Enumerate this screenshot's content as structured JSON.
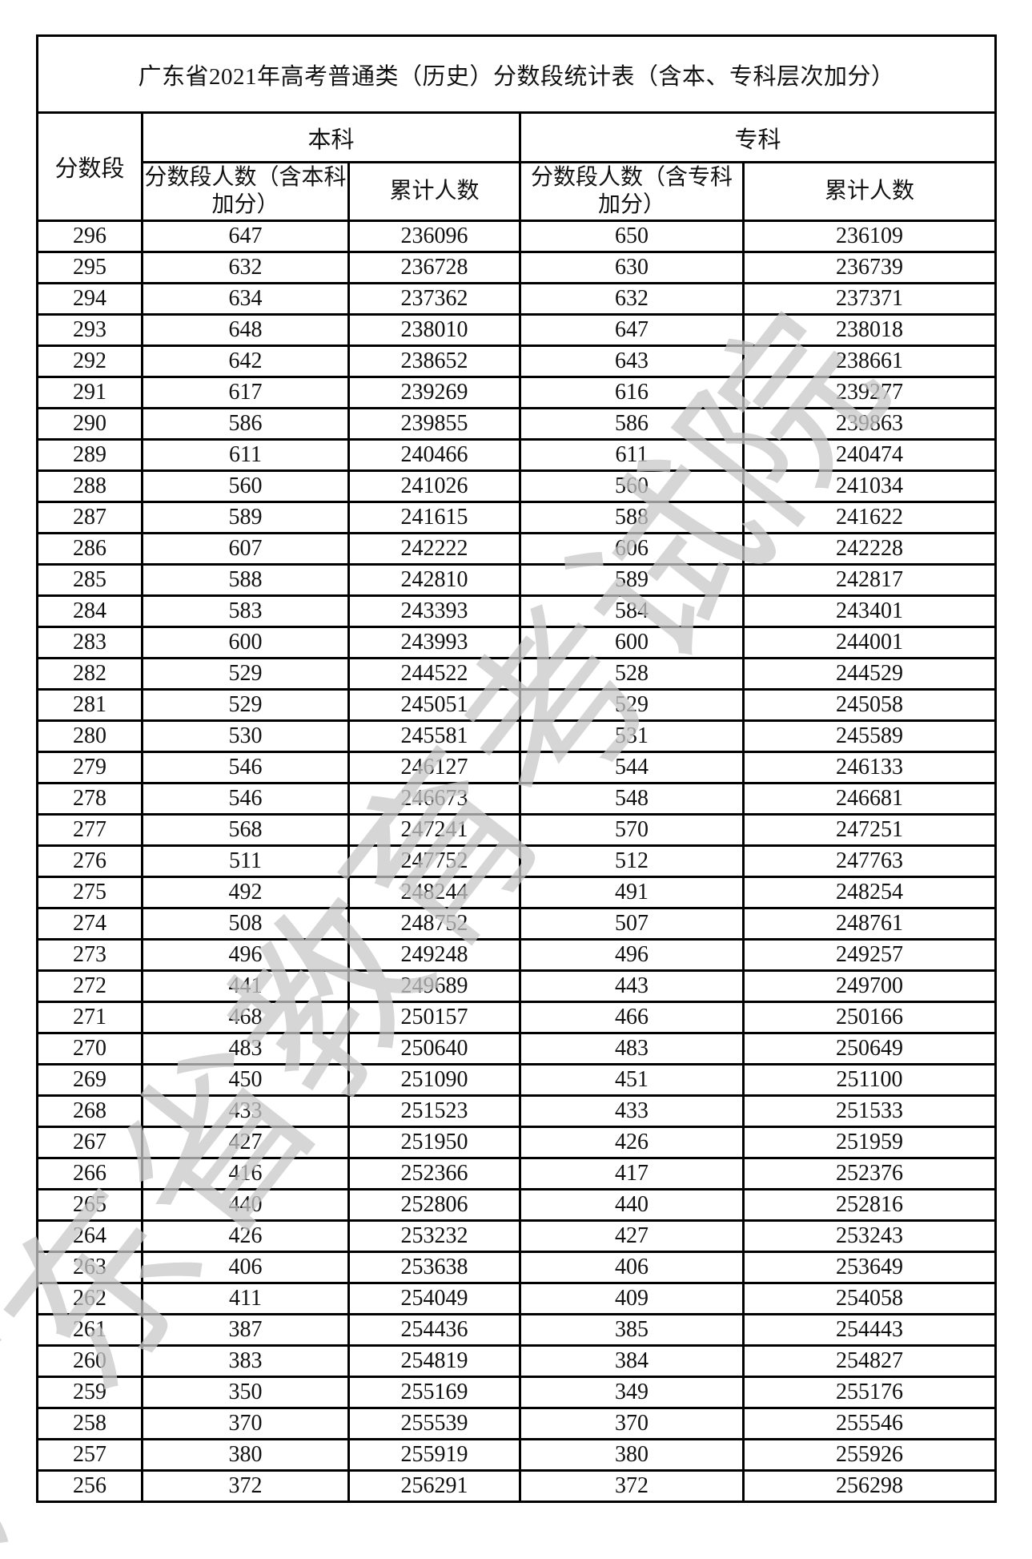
{
  "title": "广东省2021年高考普通类（历史）分数段统计表（含本、专科层次加分）",
  "headers": {
    "score_band": "分数段",
    "benke": "本科",
    "zhuanke": "专科",
    "benke_count": "分数段人数（含本科加分）",
    "benke_cumulative": "累计人数",
    "zhuanke_count": "分数段人数（含专科加分）",
    "zhuanke_cumulative": "累计人数"
  },
  "watermark": "广东省教育考试院",
  "rows": [
    [
      "296",
      "647",
      "236096",
      "650",
      "236109"
    ],
    [
      "295",
      "632",
      "236728",
      "630",
      "236739"
    ],
    [
      "294",
      "634",
      "237362",
      "632",
      "237371"
    ],
    [
      "293",
      "648",
      "238010",
      "647",
      "238018"
    ],
    [
      "292",
      "642",
      "238652",
      "643",
      "238661"
    ],
    [
      "291",
      "617",
      "239269",
      "616",
      "239277"
    ],
    [
      "290",
      "586",
      "239855",
      "586",
      "239863"
    ],
    [
      "289",
      "611",
      "240466",
      "611",
      "240474"
    ],
    [
      "288",
      "560",
      "241026",
      "560",
      "241034"
    ],
    [
      "287",
      "589",
      "241615",
      "588",
      "241622"
    ],
    [
      "286",
      "607",
      "242222",
      "606",
      "242228"
    ],
    [
      "285",
      "588",
      "242810",
      "589",
      "242817"
    ],
    [
      "284",
      "583",
      "243393",
      "584",
      "243401"
    ],
    [
      "283",
      "600",
      "243993",
      "600",
      "244001"
    ],
    [
      "282",
      "529",
      "244522",
      "528",
      "244529"
    ],
    [
      "281",
      "529",
      "245051",
      "529",
      "245058"
    ],
    [
      "280",
      "530",
      "245581",
      "531",
      "245589"
    ],
    [
      "279",
      "546",
      "246127",
      "544",
      "246133"
    ],
    [
      "278",
      "546",
      "246673",
      "548",
      "246681"
    ],
    [
      "277",
      "568",
      "247241",
      "570",
      "247251"
    ],
    [
      "276",
      "511",
      "247752",
      "512",
      "247763"
    ],
    [
      "275",
      "492",
      "248244",
      "491",
      "248254"
    ],
    [
      "274",
      "508",
      "248752",
      "507",
      "248761"
    ],
    [
      "273",
      "496",
      "249248",
      "496",
      "249257"
    ],
    [
      "272",
      "441",
      "249689",
      "443",
      "249700"
    ],
    [
      "271",
      "468",
      "250157",
      "466",
      "250166"
    ],
    [
      "270",
      "483",
      "250640",
      "483",
      "250649"
    ],
    [
      "269",
      "450",
      "251090",
      "451",
      "251100"
    ],
    [
      "268",
      "433",
      "251523",
      "433",
      "251533"
    ],
    [
      "267",
      "427",
      "251950",
      "426",
      "251959"
    ],
    [
      "266",
      "416",
      "252366",
      "417",
      "252376"
    ],
    [
      "265",
      "440",
      "252806",
      "440",
      "252816"
    ],
    [
      "264",
      "426",
      "253232",
      "427",
      "253243"
    ],
    [
      "263",
      "406",
      "253638",
      "406",
      "253649"
    ],
    [
      "262",
      "411",
      "254049",
      "409",
      "254058"
    ],
    [
      "261",
      "387",
      "254436",
      "385",
      "254443"
    ],
    [
      "260",
      "383",
      "254819",
      "384",
      "254827"
    ],
    [
      "259",
      "350",
      "255169",
      "349",
      "255176"
    ],
    [
      "258",
      "370",
      "255539",
      "370",
      "255546"
    ],
    [
      "257",
      "380",
      "255919",
      "380",
      "255926"
    ],
    [
      "256",
      "372",
      "256291",
      "372",
      "256298"
    ]
  ]
}
